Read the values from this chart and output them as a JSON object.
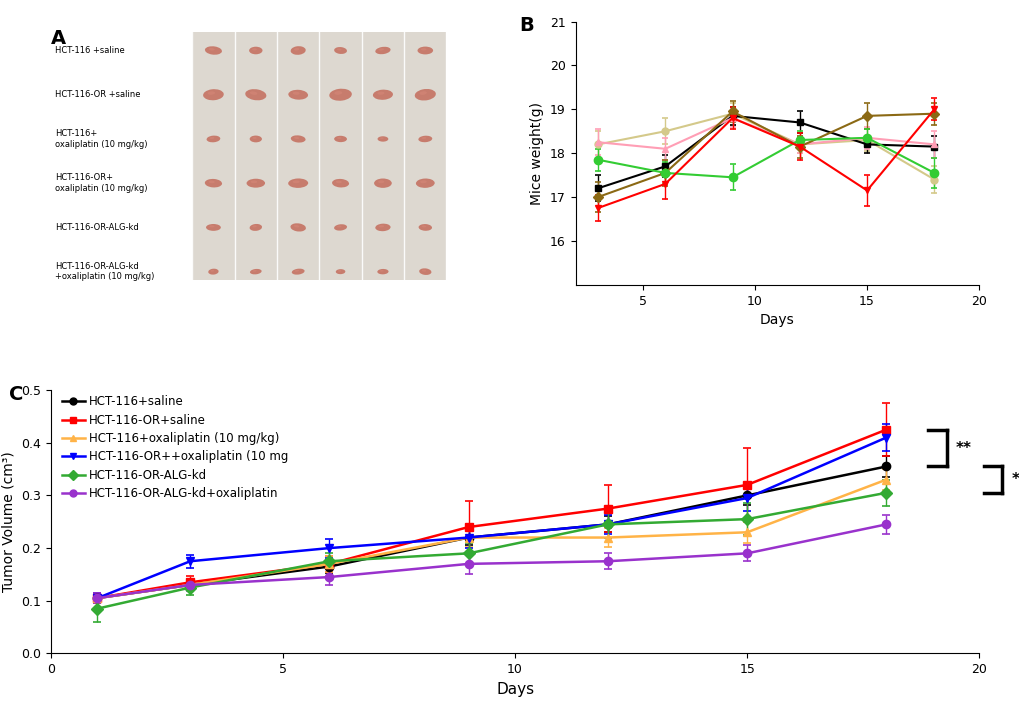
{
  "panel_A": {
    "label": "A",
    "bg_color": "#f0ebe3",
    "photo_bg": "#e8e0d5",
    "line_color": "#cccccc",
    "tumor_color": "#c47060",
    "group_labels": [
      "HCT-116 +saline",
      "HCT-116-OR +saline",
      "HCT-116+\noxaliplatin (10 mg/kg)",
      "HCT-116-OR+\noxaliplatin (10 mg/kg)",
      "HCT-116-OR-ALG-kd",
      "HCT-116-OR-ALG-kd\n+oxaliplatin (10 mg/kg)"
    ],
    "tumor_sizes": [
      [
        0.38,
        0.32,
        0.36,
        0.3,
        0.34,
        0.35
      ],
      [
        0.48,
        0.5,
        0.44,
        0.52,
        0.46,
        0.48
      ],
      [
        0.3,
        0.28,
        0.32,
        0.29,
        0.26,
        0.31
      ],
      [
        0.4,
        0.42,
        0.44,
        0.38,
        0.4,
        0.42
      ],
      [
        0.32,
        0.3,
        0.35,
        0.28,
        0.33,
        0.31
      ],
      [
        0.24,
        0.26,
        0.28,
        0.22,
        0.25,
        0.27
      ]
    ]
  },
  "panel_B": {
    "label": "B",
    "xlabel": "Days",
    "ylabel": "Mice weight(g)",
    "xlim": [
      2,
      20
    ],
    "ylim": [
      15,
      21
    ],
    "yticks": [
      16,
      17,
      18,
      19,
      20,
      21
    ],
    "xticks": [
      5,
      10,
      15,
      20
    ],
    "days": [
      3,
      6,
      9,
      12,
      15,
      18
    ],
    "series": [
      {
        "label": "HCT-116+saline",
        "color": "#d4c98a",
        "marker": "o",
        "markersize": 5,
        "linewidth": 1.5,
        "values": [
          18.2,
          18.5,
          18.9,
          18.2,
          18.3,
          17.4
        ],
        "errors": [
          0.3,
          0.3,
          0.25,
          0.2,
          0.25,
          0.3
        ]
      },
      {
        "label": "HCT-116-OR+saline",
        "color": "#000000",
        "marker": "s",
        "markersize": 5,
        "linewidth": 1.5,
        "values": [
          17.2,
          17.7,
          18.85,
          18.7,
          18.2,
          18.15
        ],
        "errors": [
          0.3,
          0.25,
          0.2,
          0.25,
          0.2,
          0.25
        ]
      },
      {
        "label": "HCT-116+oxaliplatin (10 mg/kg)",
        "color": "#ff9eb5",
        "marker": "^",
        "markersize": 5,
        "linewidth": 1.5,
        "values": [
          18.25,
          18.1,
          18.8,
          18.2,
          18.35,
          18.2
        ],
        "errors": [
          0.3,
          0.25,
          0.2,
          0.2,
          0.25,
          0.3
        ]
      },
      {
        "label": "HCT-116-OR-ALG-kd",
        "color": "#8B6914",
        "marker": "D",
        "markersize": 5,
        "linewidth": 1.5,
        "values": [
          17.0,
          17.55,
          18.95,
          18.15,
          18.85,
          18.9
        ],
        "errors": [
          0.35,
          0.3,
          0.25,
          0.25,
          0.3,
          0.25
        ]
      },
      {
        "label": "HCT-116-OR-ALG-kd+oxaliplatin (10 mg/kg)",
        "color": "#33cc33",
        "marker": "o",
        "markersize": 6,
        "linewidth": 1.5,
        "values": [
          17.85,
          17.55,
          17.45,
          18.3,
          18.35,
          17.55
        ],
        "errors": [
          0.25,
          0.25,
          0.3,
          0.2,
          0.2,
          0.35
        ]
      },
      {
        "label": "HCT-116-OR++oxaliplatin (10 mg/kg)",
        "color": "#ff0000",
        "marker": "v",
        "markersize": 5,
        "linewidth": 1.5,
        "values": [
          16.75,
          17.3,
          18.8,
          18.15,
          17.15,
          19.0
        ],
        "errors": [
          0.3,
          0.35,
          0.25,
          0.3,
          0.35,
          0.25
        ]
      }
    ]
  },
  "panel_C": {
    "label": "C",
    "xlabel": "Days",
    "ylabel": "Tumor Volume (cm³)",
    "xlim": [
      0,
      20
    ],
    "ylim": [
      0.0,
      0.5
    ],
    "yticks": [
      0.0,
      0.1,
      0.2,
      0.3,
      0.4,
      0.5
    ],
    "xticks": [
      0,
      5,
      10,
      15,
      20
    ],
    "days": [
      1,
      3,
      6,
      9,
      12,
      15,
      18
    ],
    "series": [
      {
        "label": "HCT-116+saline",
        "color": "#000000",
        "marker": "o",
        "markersize": 6,
        "linewidth": 1.8,
        "values": [
          0.105,
          0.13,
          0.165,
          0.22,
          0.245,
          0.3,
          0.355
        ],
        "errors": [
          0.01,
          0.01,
          0.012,
          0.015,
          0.015,
          0.018,
          0.02
        ]
      },
      {
        "label": "HCT-116-OR+saline",
        "color": "#ff0000",
        "marker": "s",
        "markersize": 6,
        "linewidth": 1.8,
        "values": [
          0.105,
          0.135,
          0.17,
          0.24,
          0.275,
          0.32,
          0.425
        ],
        "errors": [
          0.01,
          0.012,
          0.015,
          0.05,
          0.045,
          0.07,
          0.05
        ]
      },
      {
        "label": "HCT-116+oxaliplatin (10 mg/kg)",
        "color": "#ffb347",
        "marker": "^",
        "markersize": 6,
        "linewidth": 1.8,
        "values": [
          0.105,
          0.13,
          0.17,
          0.22,
          0.22,
          0.23,
          0.33
        ],
        "errors": [
          0.01,
          0.01,
          0.015,
          0.018,
          0.018,
          0.02,
          0.02
        ]
      },
      {
        "label": "HCT-116-OR++oxaliplatin (10 mg",
        "color": "#0000ff",
        "marker": "v",
        "markersize": 6,
        "linewidth": 1.8,
        "values": [
          0.105,
          0.175,
          0.2,
          0.22,
          0.245,
          0.295,
          0.41
        ],
        "errors": [
          0.01,
          0.012,
          0.018,
          0.02,
          0.018,
          0.025,
          0.025
        ]
      },
      {
        "label": "HCT-116-OR-ALG-kd",
        "color": "#33aa33",
        "marker": "D",
        "markersize": 6,
        "linewidth": 1.8,
        "values": [
          0.085,
          0.125,
          0.175,
          0.19,
          0.245,
          0.255,
          0.305
        ],
        "errors": [
          0.025,
          0.015,
          0.015,
          0.02,
          0.025,
          0.03,
          0.025
        ]
      },
      {
        "label": "HCT-116-OR-ALG-kd+oxaliplatin",
        "color": "#9932CC",
        "marker": "o",
        "markersize": 6,
        "linewidth": 1.8,
        "values": [
          0.105,
          0.13,
          0.145,
          0.17,
          0.175,
          0.19,
          0.245
        ],
        "errors": [
          0.01,
          0.012,
          0.015,
          0.02,
          0.015,
          0.015,
          0.018
        ]
      }
    ]
  }
}
